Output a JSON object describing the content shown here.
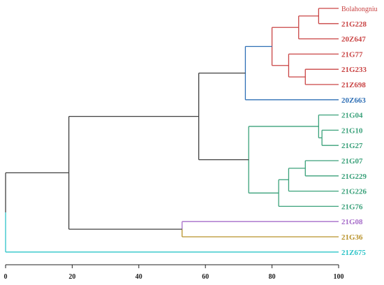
{
  "chart_data": {
    "type": "dendrogram",
    "x_axis": {
      "range": [
        0,
        100
      ],
      "ticks": [
        0,
        20,
        40,
        60,
        80,
        100
      ]
    },
    "colors": {
      "trunk": "#404040",
      "red": "#c94444",
      "blue": "#2e6fb5",
      "green": "#3aa17a",
      "purple": "#a66cc9",
      "gold": "#b8922a",
      "cyan": "#2cc4c8"
    },
    "leaves": [
      {
        "id": "L0",
        "label": "Bolahongniu",
        "color": "red",
        "light": true
      },
      {
        "id": "L1",
        "label": "21G228",
        "color": "red"
      },
      {
        "id": "L2",
        "label": "20Z647",
        "color": "red"
      },
      {
        "id": "L3",
        "label": "21G77",
        "color": "red"
      },
      {
        "id": "L4",
        "label": "21G233",
        "color": "red"
      },
      {
        "id": "L5",
        "label": "21Z698",
        "color": "red"
      },
      {
        "id": "L6",
        "label": "20Z663",
        "color": "blue"
      },
      {
        "id": "L7",
        "label": "21G04",
        "color": "green"
      },
      {
        "id": "L8",
        "label": "21G10",
        "color": "green"
      },
      {
        "id": "L9",
        "label": "21G27",
        "color": "green"
      },
      {
        "id": "L10",
        "label": "21G07",
        "color": "green"
      },
      {
        "id": "L11",
        "label": "21G229",
        "color": "green"
      },
      {
        "id": "L12",
        "label": "21G226",
        "color": "green"
      },
      {
        "id": "L13",
        "label": "21G76",
        "color": "green"
      },
      {
        "id": "L14",
        "label": "21G08",
        "color": "purple"
      },
      {
        "id": "L15",
        "label": "21G36",
        "color": "gold"
      },
      {
        "id": "L16",
        "label": "21Z675",
        "color": "cyan"
      }
    ],
    "merges": [
      {
        "id": "A",
        "children": [
          "L0",
          "L1"
        ],
        "height": 94,
        "color": "red"
      },
      {
        "id": "B",
        "children": [
          "A",
          "L2"
        ],
        "height": 88,
        "color": "red"
      },
      {
        "id": "C",
        "children": [
          "L4",
          "L5"
        ],
        "height": 90,
        "color": "red"
      },
      {
        "id": "D",
        "children": [
          "L3",
          "C"
        ],
        "height": 85,
        "color": "red"
      },
      {
        "id": "E",
        "children": [
          "B",
          "D"
        ],
        "height": 80,
        "color": "red"
      },
      {
        "id": "F",
        "children": [
          "E",
          "L6"
        ],
        "height": 72,
        "color": "blue"
      },
      {
        "id": "G",
        "children": [
          "L8",
          "L9"
        ],
        "height": 95,
        "color": "green"
      },
      {
        "id": "H",
        "children": [
          "L7",
          "G"
        ],
        "height": 94,
        "color": "green"
      },
      {
        "id": "I",
        "children": [
          "L10",
          "L11"
        ],
        "height": 90,
        "color": "green"
      },
      {
        "id": "J",
        "children": [
          "I",
          "L12"
        ],
        "height": 85,
        "color": "green"
      },
      {
        "id": "K",
        "children": [
          "J",
          "L13"
        ],
        "height": 82,
        "color": "green"
      },
      {
        "id": "M",
        "children": [
          "H",
          "K"
        ],
        "height": 73,
        "color": "green"
      },
      {
        "id": "N",
        "children": [
          "F",
          "M"
        ],
        "height": 58,
        "color": "trunk"
      },
      {
        "id": "P",
        "children": [
          "L14",
          "L15"
        ],
        "height": 53,
        "color": "purple",
        "legColors": [
          "purple",
          "gold"
        ]
      },
      {
        "id": "Q",
        "children": [
          "N",
          "P"
        ],
        "height": 19,
        "color": "trunk"
      },
      {
        "id": "R",
        "children": [
          "Q",
          "L16"
        ],
        "height": 0,
        "color": "trunk",
        "legColors": [
          "trunk",
          "cyan"
        ]
      }
    ]
  }
}
